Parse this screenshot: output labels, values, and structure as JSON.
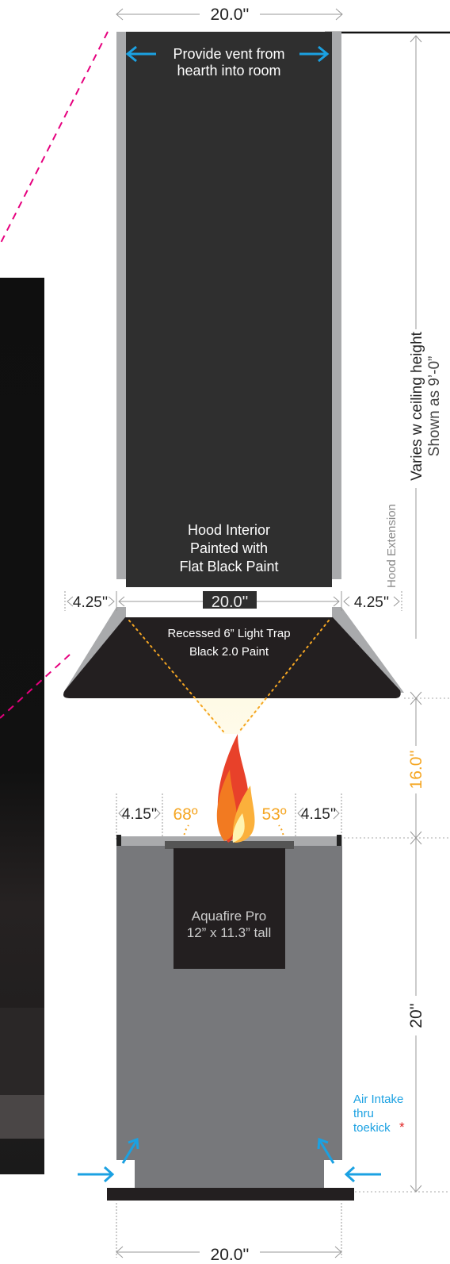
{
  "dimensions": {
    "chimney_width_top": "20.0''",
    "hood_overhang_left": "4.25''",
    "hood_inner_width": "20.0''",
    "hood_overhang_right": "4.25''",
    "hood_to_firebox": "16.0''",
    "base_height": "20''",
    "base_side_left": "4.15''",
    "base_side_right": "4.15''",
    "base_width_bottom": "20.0''",
    "angle_left": "68º",
    "angle_right": "53º"
  },
  "labels": {
    "vent_line1": "Provide vent from",
    "vent_line2": "hearth into room",
    "hood_interior_line1": "Hood Interior",
    "hood_interior_line2": "Painted with",
    "hood_interior_line3": "Flat Black Paint",
    "hood_extension": "Hood Extension",
    "light_trap_line1": "Recessed 6” Light Trap",
    "light_trap_line2": "Black 2.0 Paint",
    "ceiling_line1": "Varies w ceiling height",
    "ceiling_line2": "Shown as 9’-0”",
    "insert_line1": "Aquafire Pro",
    "insert_line2": "12” x 11.3” tall",
    "air_intake_line1": "Air Intake",
    "air_intake_line2": "thru",
    "air_intake_line3": "toekick",
    "asterisk": "*"
  },
  "colors": {
    "hood_dark": "#2f2f2f",
    "steel_gray": "#a9aaac",
    "base_gray": "#77787b",
    "arrow_blue": "#1ba1e2",
    "angle_orange": "#f5a623",
    "leader_magenta": "#e6007e",
    "light_cone": "#fdf7d6"
  }
}
